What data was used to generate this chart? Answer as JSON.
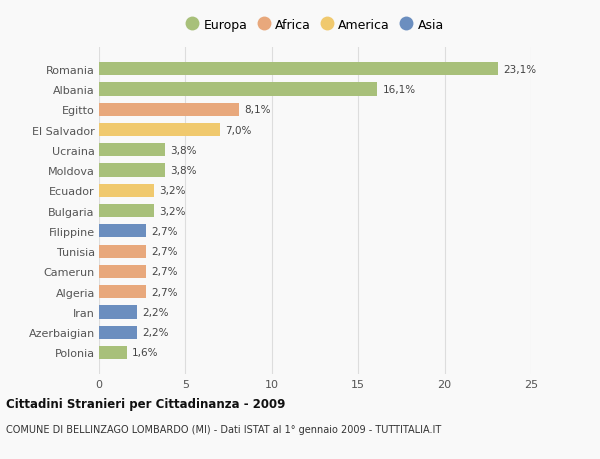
{
  "countries": [
    "Romania",
    "Albania",
    "Egitto",
    "El Salvador",
    "Ucraina",
    "Moldova",
    "Ecuador",
    "Bulgaria",
    "Filippine",
    "Tunisia",
    "Camerun",
    "Algeria",
    "Iran",
    "Azerbaigian",
    "Polonia"
  ],
  "values": [
    23.1,
    16.1,
    8.1,
    7.0,
    3.8,
    3.8,
    3.2,
    3.2,
    2.7,
    2.7,
    2.7,
    2.7,
    2.2,
    2.2,
    1.6
  ],
  "labels": [
    "23,1%",
    "16,1%",
    "8,1%",
    "7,0%",
    "3,8%",
    "3,8%",
    "3,2%",
    "3,2%",
    "2,7%",
    "2,7%",
    "2,7%",
    "2,7%",
    "2,2%",
    "2,2%",
    "1,6%"
  ],
  "colors": [
    "#a8c07a",
    "#a8c07a",
    "#e8a87c",
    "#f0c96e",
    "#a8c07a",
    "#a8c07a",
    "#f0c96e",
    "#a8c07a",
    "#6b8ebf",
    "#e8a87c",
    "#e8a87c",
    "#e8a87c",
    "#6b8ebf",
    "#6b8ebf",
    "#a8c07a"
  ],
  "legend": [
    {
      "label": "Europa",
      "color": "#a8c07a"
    },
    {
      "label": "Africa",
      "color": "#e8a87c"
    },
    {
      "label": "America",
      "color": "#f0c96e"
    },
    {
      "label": "Asia",
      "color": "#6b8ebf"
    }
  ],
  "xlim": [
    0,
    25
  ],
  "xticks": [
    0,
    5,
    10,
    15,
    20,
    25
  ],
  "title": "Cittadini Stranieri per Cittadinanza - 2009",
  "subtitle": "COMUNE DI BELLINZAGO LOMBARDO (MI) - Dati ISTAT al 1° gennaio 2009 - TUTTITALIA.IT",
  "background_color": "#f9f9f9",
  "grid_color": "#dddddd",
  "bar_height": 0.65
}
